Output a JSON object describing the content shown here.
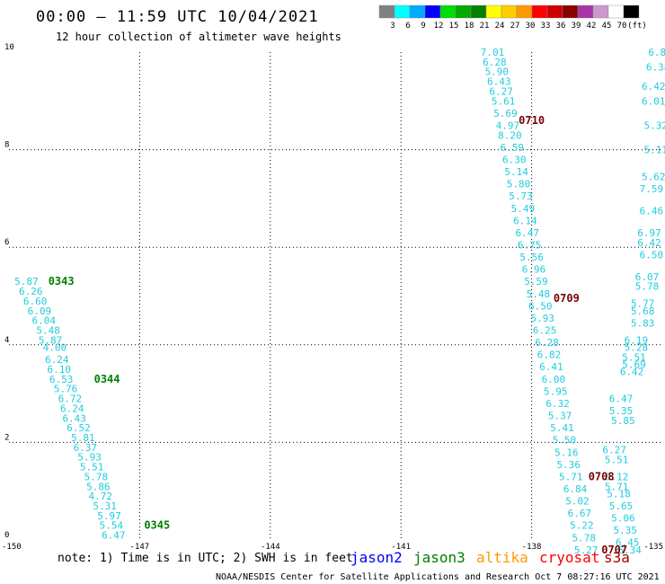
{
  "chart_data": {
    "type": "scatter",
    "title": "00:00 – 11:59 UTC 10/04/2021",
    "subtitle": "12 hour collection of altimeter wave heights",
    "xlim": [
      -150,
      -135
    ],
    "ylim": [
      0,
      10
    ],
    "x_ticks": [
      {
        "value": -150,
        "label": "-150"
      },
      {
        "value": -147,
        "label": "-147"
      },
      {
        "value": -144,
        "label": "-144"
      },
      {
        "value": -141,
        "label": "-141"
      },
      {
        "value": -138,
        "label": "-138"
      },
      {
        "value": -135,
        "label": "-135"
      }
    ],
    "y_ticks": [
      {
        "value": 0,
        "label": "0"
      },
      {
        "value": 2,
        "label": "2"
      },
      {
        "value": 4,
        "label": "4"
      },
      {
        "value": 6,
        "label": "6"
      },
      {
        "value": 8,
        "label": "8"
      },
      {
        "value": 10,
        "label": "10"
      }
    ],
    "grid": true,
    "color_scale": {
      "labels": [
        "3",
        "6",
        "9",
        "12",
        "15",
        "18",
        "21",
        "24",
        "27",
        "30",
        "33",
        "36",
        "39",
        "42",
        "45",
        "70",
        "(ft)"
      ],
      "colors": [
        "#808080",
        "#00ffff",
        "#00aaff",
        "#0000ff",
        "#00dd00",
        "#00aa00",
        "#008000",
        "#ffff00",
        "#ffcc00",
        "#ff9900",
        "#ff0000",
        "#cc0000",
        "#880000",
        "#aa33aa",
        "#cc99cc",
        "#ffffff",
        "#000000"
      ]
    },
    "series": [
      {
        "color": "#22ccdd",
        "points": [
          {
            "x": -149.6,
            "y": 5.3,
            "v": "5.87"
          },
          {
            "x": -149.5,
            "y": 5.1,
            "v": "6.26"
          },
          {
            "x": -149.4,
            "y": 4.9,
            "v": "6.60"
          },
          {
            "x": -149.3,
            "y": 4.7,
            "v": "6.09"
          },
          {
            "x": -149.2,
            "y": 4.5,
            "v": "6.04"
          },
          {
            "x": -149.1,
            "y": 4.3,
            "v": "5.48"
          },
          {
            "x": -149.05,
            "y": 4.1,
            "v": "5.87"
          },
          {
            "x": -148.95,
            "y": 3.95,
            "v": "4.00"
          },
          {
            "x": -148.9,
            "y": 3.7,
            "v": "6.24"
          },
          {
            "x": -148.85,
            "y": 3.5,
            "v": "6.10"
          },
          {
            "x": -148.8,
            "y": 3.3,
            "v": "6.53"
          },
          {
            "x": -148.7,
            "y": 3.1,
            "v": "5.76"
          },
          {
            "x": -148.6,
            "y": 2.9,
            "v": "6.72"
          },
          {
            "x": -148.55,
            "y": 2.7,
            "v": "6.24"
          },
          {
            "x": -148.5,
            "y": 2.5,
            "v": "6.43"
          },
          {
            "x": -148.4,
            "y": 2.3,
            "v": "6.52"
          },
          {
            "x": -148.3,
            "y": 2.1,
            "v": "5.81"
          },
          {
            "x": -148.25,
            "y": 1.9,
            "v": "6.37"
          },
          {
            "x": -148.15,
            "y": 1.7,
            "v": "5.93"
          },
          {
            "x": -148.1,
            "y": 1.5,
            "v": "5.51"
          },
          {
            "x": -148.0,
            "y": 1.3,
            "v": "5.78"
          },
          {
            "x": -147.95,
            "y": 1.1,
            "v": "5.86"
          },
          {
            "x": -147.9,
            "y": 0.9,
            "v": "4.72"
          },
          {
            "x": -147.8,
            "y": 0.7,
            "v": "5.31"
          },
          {
            "x": -147.7,
            "y": 0.5,
            "v": "5.97"
          },
          {
            "x": -147.65,
            "y": 0.3,
            "v": "5.54"
          },
          {
            "x": -147.6,
            "y": 0.1,
            "v": "6.47"
          }
        ]
      },
      {
        "color": "#22ccdd",
        "points": [
          {
            "x": -138.9,
            "y": 10.0,
            "v": "7.01"
          },
          {
            "x": -138.85,
            "y": 9.8,
            "v": "6.28"
          },
          {
            "x": -138.8,
            "y": 9.6,
            "v": "5.90"
          },
          {
            "x": -138.75,
            "y": 9.4,
            "v": "6.43"
          },
          {
            "x": -138.7,
            "y": 9.2,
            "v": "6.27"
          },
          {
            "x": -138.65,
            "y": 9.0,
            "v": "5.61"
          },
          {
            "x": -138.6,
            "y": 8.75,
            "v": "5.69"
          },
          {
            "x": -138.55,
            "y": 8.5,
            "v": "4.97"
          },
          {
            "x": -138.5,
            "y": 8.3,
            "v": "8.20"
          },
          {
            "x": -138.45,
            "y": 8.05,
            "v": "6.59"
          },
          {
            "x": -138.4,
            "y": 7.8,
            "v": "6.30"
          },
          {
            "x": -138.35,
            "y": 7.55,
            "v": "5.14"
          },
          {
            "x": -138.3,
            "y": 7.3,
            "v": "5.80"
          },
          {
            "x": -138.25,
            "y": 7.05,
            "v": "5.73"
          },
          {
            "x": -138.2,
            "y": 6.8,
            "v": "5.49"
          },
          {
            "x": -138.15,
            "y": 6.55,
            "v": "6.14"
          },
          {
            "x": -138.1,
            "y": 6.3,
            "v": "6.47"
          },
          {
            "x": -138.05,
            "y": 6.05,
            "v": "6.75"
          },
          {
            "x": -138.0,
            "y": 5.8,
            "v": "5.56"
          },
          {
            "x": -137.95,
            "y": 5.55,
            "v": "6.96"
          },
          {
            "x": -137.9,
            "y": 5.3,
            "v": "5.59"
          },
          {
            "x": -137.85,
            "y": 5.05,
            "v": "5.48"
          },
          {
            "x": -137.8,
            "y": 4.8,
            "v": "6.50"
          },
          {
            "x": -137.75,
            "y": 4.55,
            "v": "5.93"
          },
          {
            "x": -137.7,
            "y": 4.3,
            "v": "6.25"
          },
          {
            "x": -137.65,
            "y": 4.05,
            "v": "6.28"
          },
          {
            "x": -137.6,
            "y": 3.8,
            "v": "6.82"
          },
          {
            "x": -137.55,
            "y": 3.55,
            "v": "6.41"
          },
          {
            "x": -137.5,
            "y": 3.3,
            "v": "6.00"
          },
          {
            "x": -137.45,
            "y": 3.05,
            "v": "5.95"
          },
          {
            "x": -137.4,
            "y": 2.8,
            "v": "6.32"
          },
          {
            "x": -137.35,
            "y": 2.55,
            "v": "5.37"
          },
          {
            "x": -137.3,
            "y": 2.3,
            "v": "5.41"
          },
          {
            "x": -137.25,
            "y": 2.05,
            "v": "5.50"
          },
          {
            "x": -137.2,
            "y": 1.8,
            "v": "5.16"
          },
          {
            "x": -137.15,
            "y": 1.55,
            "v": "5.36"
          },
          {
            "x": -137.1,
            "y": 1.3,
            "v": "5.71"
          },
          {
            "x": -137.0,
            "y": 1.05,
            "v": "6.84"
          },
          {
            "x": -136.95,
            "y": 0.8,
            "v": "5.02"
          },
          {
            "x": -136.9,
            "y": 0.55,
            "v": "6.67"
          },
          {
            "x": -136.85,
            "y": 0.3,
            "v": "5.22"
          },
          {
            "x": -136.8,
            "y": 0.05,
            "v": "5.78"
          },
          {
            "x": -136.75,
            "y": -0.2,
            "v": "5.27"
          }
        ]
      },
      {
        "color": "#22ccdd",
        "points": [
          {
            "x": -136.1,
            "y": 1.85,
            "v": "6.27"
          },
          {
            "x": -136.05,
            "y": 1.65,
            "v": "5.51"
          },
          {
            "x": -136.05,
            "y": 1.3,
            "v": "6.12"
          },
          {
            "x": -136.05,
            "y": 1.1,
            "v": "5.71"
          },
          {
            "x": -136.0,
            "y": 0.95,
            "v": "5.18"
          },
          {
            "x": -135.95,
            "y": 0.7,
            "v": "5.65"
          },
          {
            "x": -135.9,
            "y": 0.45,
            "v": "5.06"
          },
          {
            "x": -135.85,
            "y": 0.2,
            "v": "5.35"
          },
          {
            "x": -135.8,
            "y": -0.05,
            "v": "6.45"
          },
          {
            "x": -135.75,
            "y": -0.25,
            "v": "6.34"
          },
          {
            "x": -135.95,
            "y": 2.9,
            "v": "6.47"
          },
          {
            "x": -135.95,
            "y": 2.65,
            "v": "5.35"
          },
          {
            "x": -135.9,
            "y": 2.45,
            "v": "5.85"
          },
          {
            "x": -135.6,
            "y": 4.1,
            "v": "6.19"
          },
          {
            "x": -135.6,
            "y": 3.95,
            "v": "5.28"
          },
          {
            "x": -135.65,
            "y": 3.75,
            "v": "5.51"
          },
          {
            "x": -135.65,
            "y": 3.6,
            "v": "5.69"
          },
          {
            "x": -135.7,
            "y": 3.45,
            "v": "6.42"
          },
          {
            "x": -135.45,
            "y": 4.85,
            "v": "5.77"
          },
          {
            "x": -135.45,
            "y": 4.7,
            "v": "5.68"
          },
          {
            "x": -135.45,
            "y": 4.45,
            "v": "5.83"
          },
          {
            "x": -135.35,
            "y": 5.4,
            "v": "6.07"
          },
          {
            "x": -135.35,
            "y": 5.2,
            "v": "5.78"
          },
          {
            "x": -135.3,
            "y": 6.3,
            "v": "6.97"
          },
          {
            "x": -135.3,
            "y": 6.1,
            "v": "6.42"
          },
          {
            "x": -135.25,
            "y": 5.85,
            "v": "6.50"
          },
          {
            "x": -135.25,
            "y": 6.75,
            "v": "6.46"
          },
          {
            "x": -135.25,
            "y": 7.2,
            "v": "7.59"
          },
          {
            "x": -135.2,
            "y": 7.45,
            "v": "5.62"
          },
          {
            "x": -135.15,
            "y": 8.0,
            "v": "5.11"
          },
          {
            "x": -135.15,
            "y": 8.5,
            "v": "5.32"
          },
          {
            "x": -135.2,
            "y": 9.0,
            "v": "6.01"
          },
          {
            "x": -135.2,
            "y": 9.3,
            "v": "6.42"
          },
          {
            "x": -135.1,
            "y": 9.7,
            "v": "6.38"
          },
          {
            "x": -135.05,
            "y": 10.0,
            "v": "6.85"
          }
        ]
      }
    ],
    "time_labels": [
      {
        "x": -148.8,
        "y": 5.3,
        "label": "0343",
        "color": "#008000"
      },
      {
        "x": -147.75,
        "y": 3.3,
        "label": "0344",
        "color": "#008000"
      },
      {
        "x": -146.6,
        "y": 0.3,
        "label": "0345",
        "color": "#008000"
      },
      {
        "x": -138.0,
        "y": 8.6,
        "label": "0710",
        "color": "#7a0000"
      },
      {
        "x": -137.2,
        "y": 4.95,
        "label": "0709",
        "color": "#7a0000"
      },
      {
        "x": -136.4,
        "y": 1.3,
        "label": "0708",
        "color": "#7a0000"
      },
      {
        "x": -136.1,
        "y": -0.2,
        "label": "0707",
        "color": "#7a0000"
      }
    ],
    "missions": [
      {
        "name": "jason2",
        "color": "#0000ff"
      },
      {
        "name": "jason3",
        "color": "#008000"
      },
      {
        "name": "altika",
        "color": "#ff9900"
      },
      {
        "name": "cryosat",
        "color": "#ff0000"
      },
      {
        "name": "s3a",
        "color": "#aa0000"
      }
    ],
    "note": "note: 1) Time is in UTC; 2) SWH is in feet",
    "credit": "NOAA/NESDIS Center for Satellite Applications and Research   Oct  7 08:27:16 UTC 2021"
  }
}
